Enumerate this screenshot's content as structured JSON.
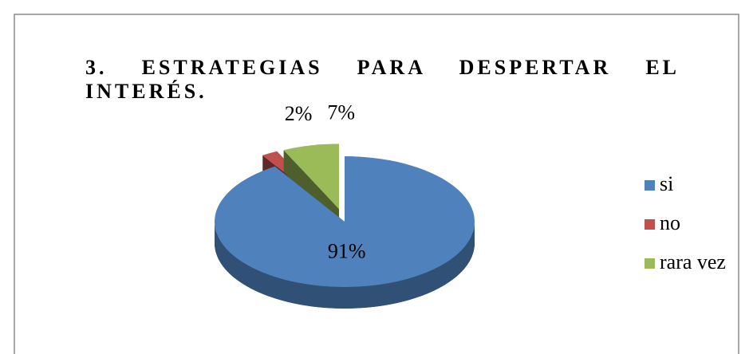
{
  "chart_data": {
    "type": "pie",
    "title": "3. ESTRATEGIAS PARA DESPERTAR EL INTERÉS.",
    "categories": [
      "si",
      "no",
      "rara vez"
    ],
    "values": [
      91,
      2,
      7
    ],
    "value_labels": [
      "91%",
      "2%",
      "7%"
    ],
    "colors": [
      "#4f81bd",
      "#c0504d",
      "#9bbb59"
    ],
    "legend": "right"
  }
}
